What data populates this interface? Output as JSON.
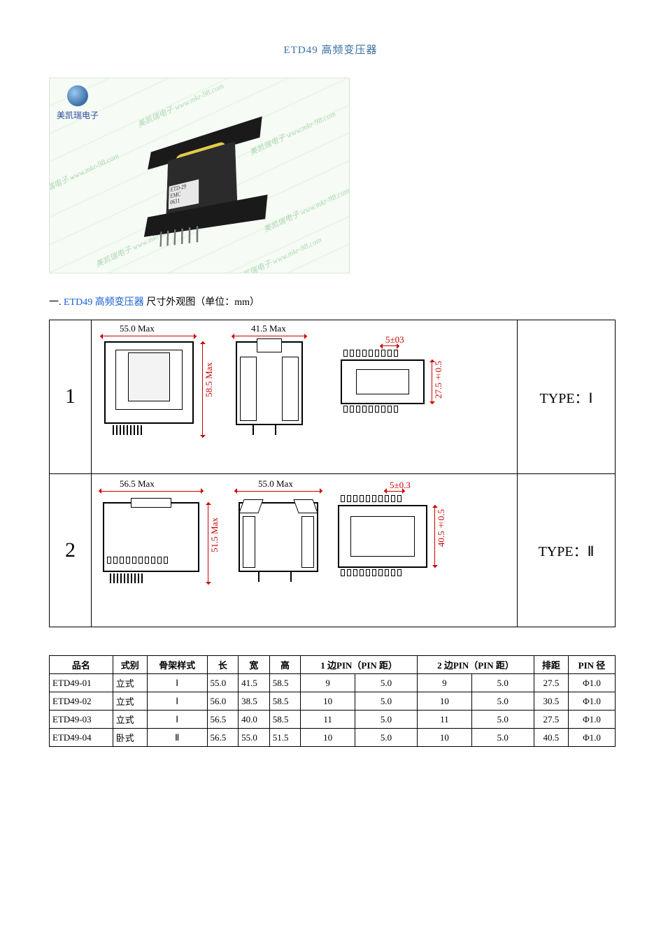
{
  "title": "ETD49 高频变压器",
  "photo": {
    "logo_text": "美凯瑞电子",
    "watermark_text": "美凯瑞电子 www.mkr-98.com",
    "label_line1": "ETD-29",
    "label_line2": "EMC",
    "label_line3": "0631"
  },
  "section1": {
    "prefix": "一.",
    "link": "ETD49 高频变压器",
    "suffix": "尺寸外观图（单位：mm）"
  },
  "drawing": {
    "row1": {
      "num": "1",
      "num_fontsize": 30,
      "type_label": "TYPE：Ⅰ",
      "dims": {
        "w1": "55.0 Max",
        "w2": "41.5 Max",
        "h1": "58.5 Max",
        "pitch": "5±03",
        "h2": "27.5±0.5"
      }
    },
    "row2": {
      "num": "2",
      "num_fontsize": 30,
      "type_label": "TYPE：Ⅱ",
      "dims": {
        "w1": "56.5 Max",
        "w2": "55.0 Max",
        "h1": "51.5 Max",
        "pitch": "5±0.3",
        "h2": "40.5±0.5"
      }
    }
  },
  "table": {
    "headers": [
      "品名",
      "式别",
      "骨架样式",
      "长",
      "宽",
      "高",
      "1 边PIN（PIN 距）",
      "2 边PIN（PIN 距）",
      "排距",
      "PIN 径"
    ],
    "subcount": {
      "pin1": 2,
      "pin2": 2
    },
    "rows": [
      {
        "name": "ETD49-01",
        "style": "立式",
        "frame": "Ⅰ",
        "l": "55.0",
        "w": "41.5",
        "h": "58.5",
        "p1n": "9",
        "p1d": "5.0",
        "p2n": "9",
        "p2d": "5.0",
        "pitch": "27.5",
        "dia": "Φ1.0"
      },
      {
        "name": "ETD49-02",
        "style": "立式",
        "frame": "Ⅰ",
        "l": "56.0",
        "w": "38.5",
        "h": "58.5",
        "p1n": "10",
        "p1d": "5.0",
        "p2n": "10",
        "p2d": "5.0",
        "pitch": "30.5",
        "dia": "Φ1.0"
      },
      {
        "name": "ETD49-03",
        "style": "立式",
        "frame": "Ⅰ",
        "l": "56.5",
        "w": "40.0",
        "h": "58.5",
        "p1n": "11",
        "p1d": "5.0",
        "p2n": "11",
        "p2d": "5.0",
        "pitch": "27.5",
        "dia": "Φ1.0"
      },
      {
        "name": "ETD49-04",
        "style": "卧式",
        "frame": "Ⅱ",
        "l": "56.5",
        "w": "55.0",
        "h": "51.5",
        "p1n": "10",
        "p1d": "5.0",
        "p2n": "10",
        "p2d": "5.0",
        "pitch": "40.5",
        "dia": "Φ1.0"
      }
    ]
  },
  "colors": {
    "title": "#3a6ea5",
    "link": "#1a5fd0",
    "dim": "#c00000",
    "line": "#000000",
    "wm": "#7fbf7f"
  }
}
